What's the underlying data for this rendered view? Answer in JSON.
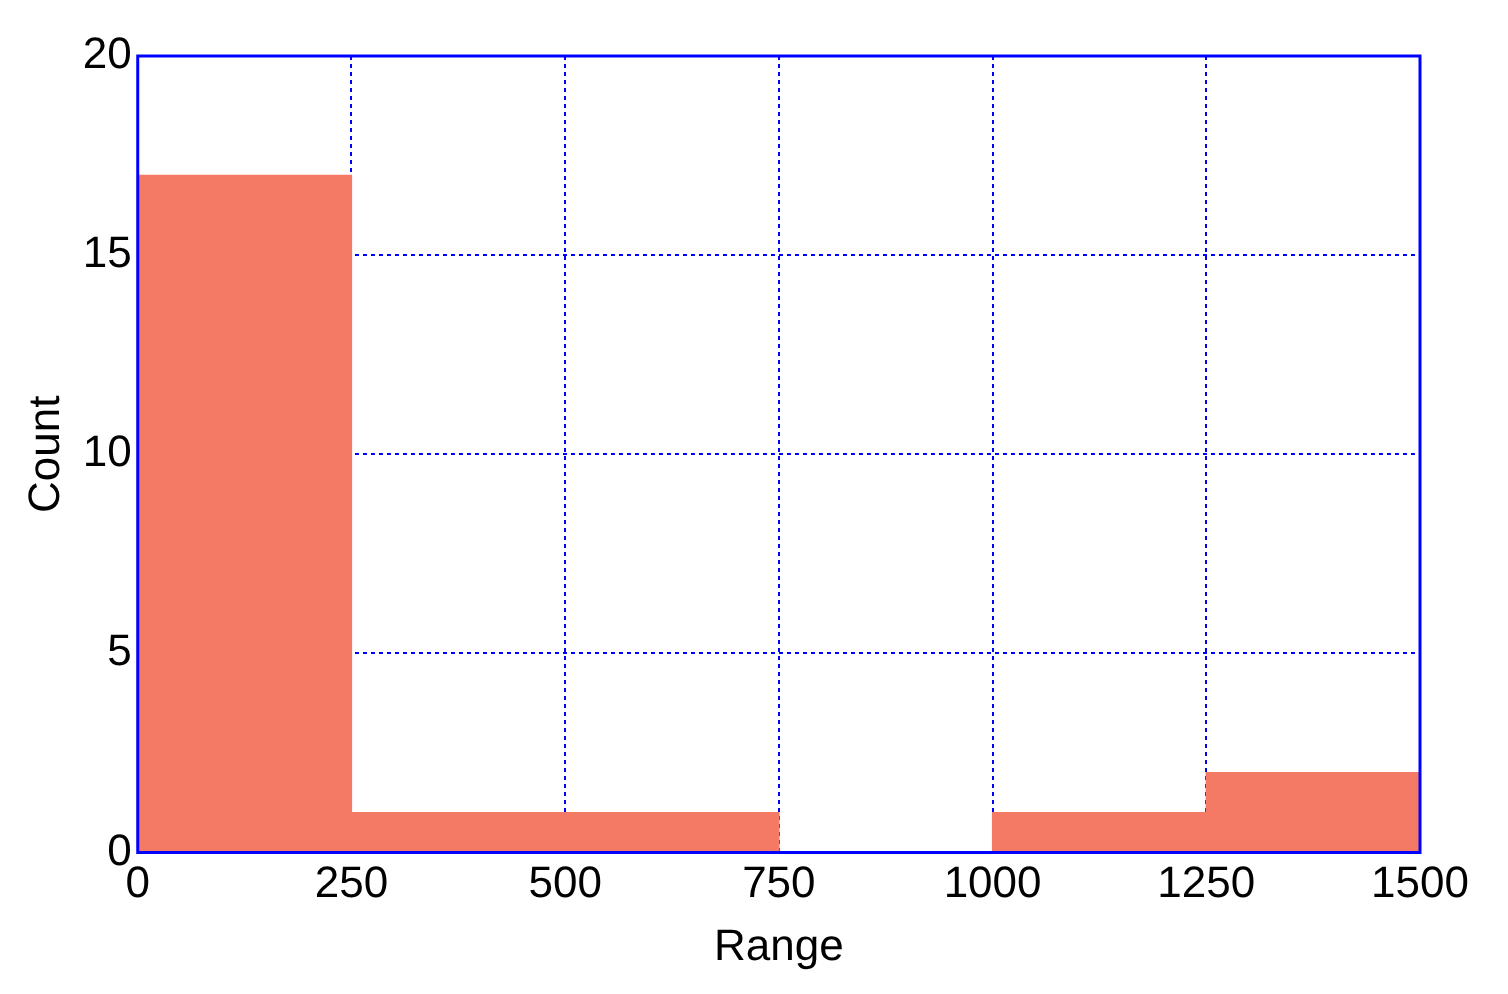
{
  "chart_data": {
    "type": "histogram",
    "xlabel": "Range",
    "ylabel": "Count",
    "bins": [
      0,
      250,
      500,
      750,
      1000,
      1250,
      1500
    ],
    "values": [
      17,
      1,
      1,
      0,
      1,
      2
    ],
    "color": "#f47a66",
    "xlim": [
      0,
      1500
    ],
    "xticks": [
      0,
      250,
      500,
      750,
      1000,
      1250,
      1500
    ],
    "ylim": [
      0,
      20
    ],
    "yticks": [
      0,
      5,
      10,
      15,
      20
    ],
    "grid": true
  }
}
